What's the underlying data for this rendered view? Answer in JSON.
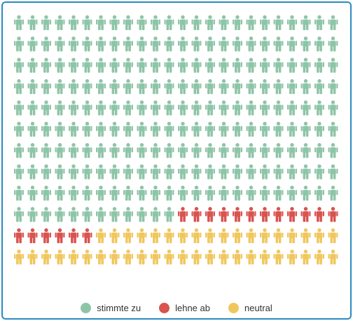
{
  "chart_data": {
    "type": "pictogram",
    "unit": "person",
    "grid": {
      "columns": 24,
      "rows": 12
    },
    "order": "row-major",
    "series": [
      {
        "name": "stimmte zu",
        "count": 228,
        "color": "#8ec5a8"
      },
      {
        "name": "lehne ab",
        "count": 18,
        "color": "#d9534f"
      },
      {
        "name": "neutral",
        "count": 42,
        "color": "#f0c75e"
      }
    ],
    "legend": {
      "position": "bottom"
    }
  }
}
